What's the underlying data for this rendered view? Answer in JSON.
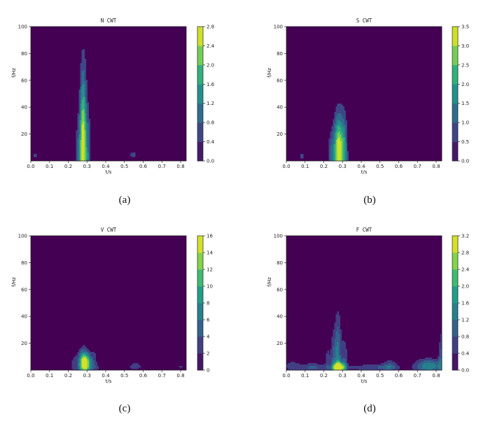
{
  "chart_data": [
    {
      "type": "heatmap",
      "title": "N CWT",
      "xlabel": "t/s",
      "ylabel": "f/Hz",
      "xlim": [
        0,
        0.83
      ],
      "ylim": [
        0,
        100
      ],
      "xticks": [
        "0.0",
        "0.1",
        "0.2",
        "0.3",
        "0.4",
        "0.5",
        "0.6",
        "0.7",
        "0.8"
      ],
      "yticks": [
        "20",
        "40",
        "60",
        "80",
        "100"
      ],
      "colorbar": {
        "min": 0,
        "max": 2.8,
        "ticks": [
          "0.0",
          "0.4",
          "0.8",
          "1.2",
          "1.6",
          "2.0",
          "2.4",
          "2.8"
        ]
      },
      "caption": "(a)",
      "peaks": [
        {
          "t": 0.28,
          "f": 8,
          "amplitude": 2.8,
          "t_spread": 0.012,
          "f_extent": 85
        },
        {
          "t": 0.305,
          "f": 6,
          "amplitude": 0.9,
          "t_spread": 0.01,
          "f_extent": 50
        },
        {
          "t": 0.255,
          "f": 6,
          "amplitude": 0.7,
          "t_spread": 0.012,
          "f_extent": 45
        },
        {
          "t": 0.02,
          "f": 6,
          "amplitude": 0.35,
          "t_spread": 0.02,
          "f_extent": 16
        },
        {
          "t": 0.55,
          "f": 5,
          "amplitude": 0.4,
          "t_spread": 0.04,
          "f_extent": 10
        },
        {
          "t": 0.8,
          "f": 4,
          "amplitude": 0.35,
          "t_spread": 0.03,
          "f_extent": 12
        },
        {
          "t": 0.1,
          "f": 3,
          "amplitude": 0.3,
          "t_spread": 0.05,
          "f_extent": 6
        },
        {
          "t": 0.42,
          "f": 3,
          "amplitude": 0.3,
          "t_spread": 0.06,
          "f_extent": 5
        },
        {
          "t": 0.7,
          "f": 3,
          "amplitude": 0.3,
          "t_spread": 0.05,
          "f_extent": 5
        }
      ]
    },
    {
      "type": "heatmap",
      "title": "S CWT",
      "xlabel": "t/s",
      "ylabel": "f/Hz",
      "xlim": [
        0,
        0.83
      ],
      "ylim": [
        0,
        100
      ],
      "xticks": [
        "0.0",
        "0.1",
        "0.2",
        "0.3",
        "0.4",
        "0.5",
        "0.6",
        "0.7",
        "0.8"
      ],
      "yticks": [
        "20",
        "40",
        "60",
        "80",
        "100"
      ],
      "colorbar": {
        "min": 0,
        "max": 3.5,
        "ticks": [
          "0.0",
          "0.5",
          "1.0",
          "1.5",
          "2.0",
          "2.5",
          "3.0",
          "3.5"
        ]
      },
      "caption": "(b)",
      "peaks": [
        {
          "t": 0.28,
          "f": 7,
          "amplitude": 3.5,
          "t_spread": 0.018,
          "f_extent": 40
        },
        {
          "t": 0.31,
          "f": 6,
          "amplitude": 1.2,
          "t_spread": 0.012,
          "f_extent": 45
        },
        {
          "t": 0.24,
          "f": 5,
          "amplitude": 0.9,
          "t_spread": 0.012,
          "f_extent": 28
        },
        {
          "t": 0.08,
          "f": 6,
          "amplitude": 0.4,
          "t_spread": 0.012,
          "f_extent": 15
        },
        {
          "t": 0.14,
          "f": 3,
          "amplitude": 0.35,
          "t_spread": 0.06,
          "f_extent": 5
        },
        {
          "t": 0.45,
          "f": 3,
          "amplitude": 0.4,
          "t_spread": 0.08,
          "f_extent": 6
        },
        {
          "t": 0.8,
          "f": 3,
          "amplitude": 0.4,
          "t_spread": 0.04,
          "f_extent": 8
        },
        {
          "t": 0.56,
          "f": 3,
          "amplitude": 0.3,
          "t_spread": 0.03,
          "f_extent": 4
        }
      ]
    },
    {
      "type": "heatmap",
      "title": "V CWT",
      "xlabel": "t/s",
      "ylabel": "f/Hz",
      "xlim": [
        0,
        0.83
      ],
      "ylim": [
        0,
        100
      ],
      "xticks": [
        "0.0",
        "0.1",
        "0.2",
        "0.3",
        "0.4",
        "0.5",
        "0.6",
        "0.7",
        "0.8"
      ],
      "yticks": [
        "20",
        "40",
        "60",
        "80",
        "100"
      ],
      "colorbar": {
        "min": 0,
        "max": 16,
        "ticks": [
          "0",
          "2",
          "4",
          "6",
          "8",
          "10",
          "12",
          "14",
          "16"
        ]
      },
      "caption": "(c)",
      "peaks": [
        {
          "t": 0.29,
          "f": 5,
          "amplitude": 16,
          "t_spread": 0.022,
          "f_extent": 12
        },
        {
          "t": 0.28,
          "f": 8,
          "amplitude": 3.0,
          "t_spread": 0.015,
          "f_extent": 18
        },
        {
          "t": 0.34,
          "f": 7,
          "amplitude": 2.5,
          "t_spread": 0.012,
          "f_extent": 16
        },
        {
          "t": 0.23,
          "f": 6,
          "amplitude": 2.2,
          "t_spread": 0.015,
          "f_extent": 12
        },
        {
          "t": 0.56,
          "f": 5,
          "amplitude": 2.0,
          "t_spread": 0.03,
          "f_extent": 7
        },
        {
          "t": 0.8,
          "f": 4,
          "amplitude": 1.6,
          "t_spread": 0.02,
          "f_extent": 7
        },
        {
          "t": 0.42,
          "f": 2,
          "amplitude": 2.0,
          "t_spread": 0.1,
          "f_extent": 3
        },
        {
          "t": 0.1,
          "f": 2,
          "amplitude": 1.5,
          "t_spread": 0.08,
          "f_extent": 3
        },
        {
          "t": 0.7,
          "f": 2,
          "amplitude": 1.5,
          "t_spread": 0.08,
          "f_extent": 3
        }
      ]
    },
    {
      "type": "heatmap",
      "title": "F CWT",
      "xlabel": "t/s",
      "ylabel": "f/Hz",
      "xlim": [
        0,
        0.83
      ],
      "ylim": [
        0,
        100
      ],
      "xticks": [
        "0.0",
        "0.1",
        "0.2",
        "0.3",
        "0.4",
        "0.5",
        "0.6",
        "0.7",
        "0.8"
      ],
      "yticks": [
        "20",
        "40",
        "60",
        "80",
        "100"
      ],
      "colorbar": {
        "min": 0,
        "max": 3.2,
        "ticks": [
          "0.0",
          "0.4",
          "0.8",
          "1.2",
          "1.6",
          "2.0",
          "2.4",
          "2.8",
          "3.2"
        ]
      },
      "caption": "(d)",
      "peaks": [
        {
          "t": 0.28,
          "f": 2,
          "amplitude": 3.2,
          "t_spread": 0.02,
          "f_extent": 6
        },
        {
          "t": 0.275,
          "f": 8,
          "amplitude": 1.4,
          "t_spread": 0.012,
          "f_extent": 50
        },
        {
          "t": 0.25,
          "f": 6,
          "amplitude": 0.8,
          "t_spread": 0.01,
          "f_extent": 35
        },
        {
          "t": 0.31,
          "f": 5,
          "amplitude": 0.8,
          "t_spread": 0.012,
          "f_extent": 30
        },
        {
          "t": 0.22,
          "f": 4,
          "amplitude": 0.6,
          "t_spread": 0.01,
          "f_extent": 25
        },
        {
          "t": 0.83,
          "f": 6,
          "amplitude": 1.0,
          "t_spread": 0.012,
          "f_extent": 35
        },
        {
          "t": 0.76,
          "f": 3,
          "amplitude": 1.6,
          "t_spread": 0.05,
          "f_extent": 8
        },
        {
          "t": 0.55,
          "f": 3,
          "amplitude": 0.8,
          "t_spread": 0.03,
          "f_extent": 8
        },
        {
          "t": 0.14,
          "f": 2,
          "amplitude": 0.9,
          "t_spread": 0.05,
          "f_extent": 5
        },
        {
          "t": 0.03,
          "f": 3,
          "amplitude": 0.6,
          "t_spread": 0.03,
          "f_extent": 7
        },
        {
          "t": 0.45,
          "f": 2,
          "amplitude": 0.8,
          "t_spread": 0.1,
          "f_extent": 3
        }
      ]
    }
  ],
  "colors": {
    "viridis": [
      "#440154",
      "#482878",
      "#3e4989",
      "#31688e",
      "#26828e",
      "#1f9e89",
      "#35b779",
      "#6ece58",
      "#b5de2b",
      "#fde725"
    ],
    "axis": "#222222",
    "background": "#ffffff"
  }
}
